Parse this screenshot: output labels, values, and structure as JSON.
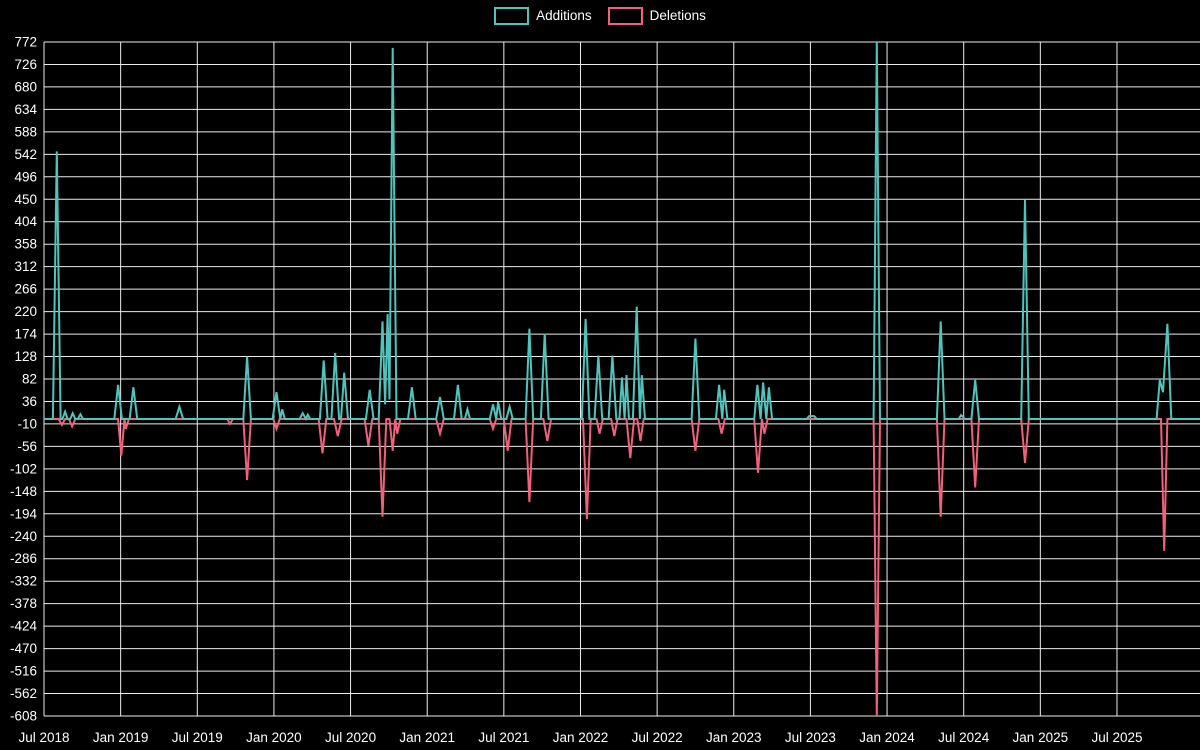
{
  "chart_data": {
    "type": "line",
    "title": "",
    "legend_position": "top",
    "grid": true,
    "background_color": "#000000",
    "grid_color": "#ececec",
    "text_color": "#ffffff",
    "x_unit": "months since Jul 2018 (weekly data)",
    "x_axis": {
      "domain": [
        0,
        90.5
      ],
      "ticks": [
        {
          "m": 0,
          "label": "Jul 2018"
        },
        {
          "m": 6,
          "label": "Jan 2019"
        },
        {
          "m": 12,
          "label": "Jul 2019"
        },
        {
          "m": 18,
          "label": "Jan 2020"
        },
        {
          "m": 24,
          "label": "Jul 2020"
        },
        {
          "m": 30,
          "label": "Jan 2021"
        },
        {
          "m": 36,
          "label": "Jul 2021"
        },
        {
          "m": 42,
          "label": "Jan 2022"
        },
        {
          "m": 48,
          "label": "Jul 2022"
        },
        {
          "m": 54,
          "label": "Jan 2023"
        },
        {
          "m": 60,
          "label": "Jul 2023"
        },
        {
          "m": 66,
          "label": "Jan 2024"
        },
        {
          "m": 72,
          "label": "Jul 2024"
        },
        {
          "m": 78,
          "label": "Jan 2025"
        },
        {
          "m": 84,
          "label": "Jul 2025"
        }
      ]
    },
    "y_axis": {
      "min": -608,
      "max": 772,
      "step": 46,
      "ticks": [
        772,
        726,
        680,
        634,
        588,
        542,
        496,
        450,
        404,
        358,
        312,
        266,
        220,
        174,
        128,
        82,
        36,
        -10,
        -56,
        -102,
        -148,
        -194,
        -240,
        -286,
        -332,
        -378,
        -424,
        -470,
        -516,
        -562,
        -608
      ]
    },
    "series": [
      {
        "name": "Additions",
        "color": "#4fc4bd",
        "points": [
          [
            0,
            0
          ],
          [
            0.7,
            0
          ],
          [
            1.0,
            548
          ],
          [
            1.3,
            0
          ],
          [
            1.45,
            0
          ],
          [
            1.65,
            15
          ],
          [
            1.85,
            0
          ],
          [
            2.05,
            0
          ],
          [
            2.25,
            12
          ],
          [
            2.45,
            0
          ],
          [
            2.65,
            0
          ],
          [
            2.85,
            10
          ],
          [
            3.05,
            0
          ],
          [
            5.5,
            0
          ],
          [
            5.8,
            70
          ],
          [
            6.1,
            0
          ],
          [
            6.7,
            0
          ],
          [
            7.0,
            65
          ],
          [
            7.3,
            0
          ],
          [
            10.3,
            0
          ],
          [
            10.6,
            25
          ],
          [
            10.9,
            0
          ],
          [
            15.6,
            0
          ],
          [
            15.9,
            128
          ],
          [
            16.2,
            0
          ],
          [
            17.9,
            0
          ],
          [
            18.2,
            55
          ],
          [
            18.5,
            0
          ],
          [
            18.65,
            20
          ],
          [
            18.85,
            0
          ],
          [
            20.0,
            0
          ],
          [
            20.25,
            12
          ],
          [
            20.5,
            0
          ],
          [
            20.65,
            9
          ],
          [
            20.85,
            0
          ],
          [
            21.6,
            0
          ],
          [
            21.9,
            120
          ],
          [
            22.2,
            0
          ],
          [
            22.5,
            0
          ],
          [
            22.8,
            135
          ],
          [
            23.1,
            0
          ],
          [
            23.25,
            0
          ],
          [
            23.5,
            95
          ],
          [
            23.8,
            0
          ],
          [
            25.2,
            0
          ],
          [
            25.5,
            60
          ],
          [
            25.8,
            0
          ],
          [
            26.2,
            0
          ],
          [
            26.5,
            200
          ],
          [
            26.7,
            30
          ],
          [
            26.9,
            215
          ],
          [
            27.05,
            40
          ],
          [
            27.3,
            760
          ],
          [
            27.6,
            0
          ],
          [
            28.5,
            0
          ],
          [
            28.8,
            65
          ],
          [
            29.1,
            0
          ],
          [
            30.7,
            0
          ],
          [
            31.0,
            45
          ],
          [
            31.3,
            0
          ],
          [
            32.1,
            0
          ],
          [
            32.4,
            70
          ],
          [
            32.7,
            0
          ],
          [
            32.95,
            0
          ],
          [
            33.15,
            20
          ],
          [
            33.35,
            0
          ],
          [
            34.9,
            0
          ],
          [
            35.15,
            30
          ],
          [
            35.4,
            0
          ],
          [
            35.55,
            35
          ],
          [
            35.8,
            0
          ],
          [
            36.2,
            0
          ],
          [
            36.45,
            25
          ],
          [
            36.7,
            0
          ],
          [
            37.7,
            0
          ],
          [
            38.0,
            185
          ],
          [
            38.3,
            0
          ],
          [
            38.9,
            0
          ],
          [
            39.2,
            175
          ],
          [
            39.5,
            0
          ],
          [
            42.1,
            0
          ],
          [
            42.4,
            205
          ],
          [
            42.7,
            0
          ],
          [
            43.1,
            0
          ],
          [
            43.4,
            130
          ],
          [
            43.7,
            0
          ],
          [
            44.2,
            0
          ],
          [
            44.5,
            130
          ],
          [
            44.8,
            0
          ],
          [
            45.05,
            0
          ],
          [
            45.25,
            85
          ],
          [
            45.45,
            0
          ],
          [
            45.6,
            90
          ],
          [
            45.8,
            0
          ],
          [
            46.1,
            0
          ],
          [
            46.4,
            230
          ],
          [
            46.65,
            0
          ],
          [
            46.8,
            90
          ],
          [
            47.05,
            0
          ],
          [
            50.7,
            0
          ],
          [
            51.0,
            165
          ],
          [
            51.3,
            0
          ],
          [
            52.6,
            0
          ],
          [
            52.85,
            70
          ],
          [
            53.1,
            0
          ],
          [
            53.25,
            60
          ],
          [
            53.5,
            0
          ],
          [
            55.6,
            0
          ],
          [
            55.85,
            70
          ],
          [
            56.1,
            0
          ],
          [
            56.3,
            75
          ],
          [
            56.55,
            0
          ],
          [
            56.75,
            65
          ],
          [
            57.0,
            0
          ],
          [
            59.7,
            0
          ],
          [
            59.9,
            6
          ],
          [
            60.3,
            6
          ],
          [
            60.5,
            0
          ],
          [
            64.95,
            0
          ],
          [
            65.2,
            772
          ],
          [
            65.45,
            0
          ],
          [
            69.9,
            0
          ],
          [
            70.2,
            200
          ],
          [
            70.5,
            0
          ],
          [
            71.6,
            0
          ],
          [
            71.8,
            8
          ],
          [
            72.1,
            0
          ],
          [
            72.6,
            0
          ],
          [
            72.9,
            80
          ],
          [
            73.2,
            0
          ],
          [
            76.5,
            0
          ],
          [
            76.8,
            450
          ],
          [
            77.1,
            0
          ],
          [
            87.1,
            0
          ],
          [
            87.35,
            80
          ],
          [
            87.6,
            55
          ],
          [
            87.95,
            195
          ],
          [
            88.25,
            0
          ],
          [
            90.5,
            0
          ]
        ]
      },
      {
        "name": "Deletions",
        "color": "#f2617b",
        "points": [
          [
            0,
            0
          ],
          [
            1.15,
            0
          ],
          [
            1.4,
            -12
          ],
          [
            1.65,
            0
          ],
          [
            1.95,
            0
          ],
          [
            2.2,
            -15
          ],
          [
            2.45,
            0
          ],
          [
            5.8,
            0
          ],
          [
            6.05,
            -75
          ],
          [
            6.3,
            0
          ],
          [
            6.4,
            -20
          ],
          [
            6.65,
            0
          ],
          [
            14.35,
            0
          ],
          [
            14.55,
            -10
          ],
          [
            14.8,
            0
          ],
          [
            15.6,
            0
          ],
          [
            15.9,
            -125
          ],
          [
            16.2,
            0
          ],
          [
            17.95,
            0
          ],
          [
            18.2,
            -20
          ],
          [
            18.45,
            0
          ],
          [
            21.5,
            0
          ],
          [
            21.8,
            -70
          ],
          [
            22.1,
            0
          ],
          [
            22.7,
            0
          ],
          [
            23.0,
            -35
          ],
          [
            23.3,
            0
          ],
          [
            25.1,
            0
          ],
          [
            25.4,
            -55
          ],
          [
            25.7,
            0
          ],
          [
            26.2,
            0
          ],
          [
            26.5,
            -200
          ],
          [
            26.8,
            0
          ],
          [
            27.05,
            0
          ],
          [
            27.3,
            -65
          ],
          [
            27.5,
            0
          ],
          [
            27.65,
            -30
          ],
          [
            27.9,
            0
          ],
          [
            30.7,
            0
          ],
          [
            31.0,
            -30
          ],
          [
            31.3,
            0
          ],
          [
            34.9,
            0
          ],
          [
            35.15,
            -20
          ],
          [
            35.4,
            0
          ],
          [
            36.0,
            0
          ],
          [
            36.3,
            -65
          ],
          [
            36.6,
            0
          ],
          [
            37.7,
            0
          ],
          [
            38.0,
            -170
          ],
          [
            38.3,
            0
          ],
          [
            39.1,
            0
          ],
          [
            39.4,
            -45
          ],
          [
            39.7,
            0
          ],
          [
            42.2,
            0
          ],
          [
            42.5,
            -205
          ],
          [
            42.8,
            0
          ],
          [
            43.25,
            0
          ],
          [
            43.5,
            -30
          ],
          [
            43.75,
            0
          ],
          [
            44.4,
            0
          ],
          [
            44.65,
            -35
          ],
          [
            44.9,
            0
          ],
          [
            45.6,
            0
          ],
          [
            45.9,
            -80
          ],
          [
            46.2,
            0
          ],
          [
            46.45,
            0
          ],
          [
            46.7,
            -45
          ],
          [
            46.95,
            0
          ],
          [
            50.7,
            0
          ],
          [
            51.0,
            -65
          ],
          [
            51.3,
            0
          ],
          [
            52.8,
            0
          ],
          [
            53.05,
            -30
          ],
          [
            53.3,
            0
          ],
          [
            55.6,
            0
          ],
          [
            55.9,
            -110
          ],
          [
            56.2,
            0
          ],
          [
            56.4,
            -30
          ],
          [
            56.65,
            0
          ],
          [
            64.95,
            0
          ],
          [
            65.2,
            -608
          ],
          [
            65.45,
            0
          ],
          [
            69.9,
            0
          ],
          [
            70.2,
            -200
          ],
          [
            70.5,
            0
          ],
          [
            72.6,
            0
          ],
          [
            72.9,
            -140
          ],
          [
            73.2,
            0
          ],
          [
            76.5,
            0
          ],
          [
            76.8,
            -90
          ],
          [
            77.1,
            0
          ],
          [
            87.45,
            0
          ],
          [
            87.7,
            -270
          ],
          [
            87.95,
            0
          ],
          [
            90.5,
            0
          ]
        ]
      }
    ]
  }
}
